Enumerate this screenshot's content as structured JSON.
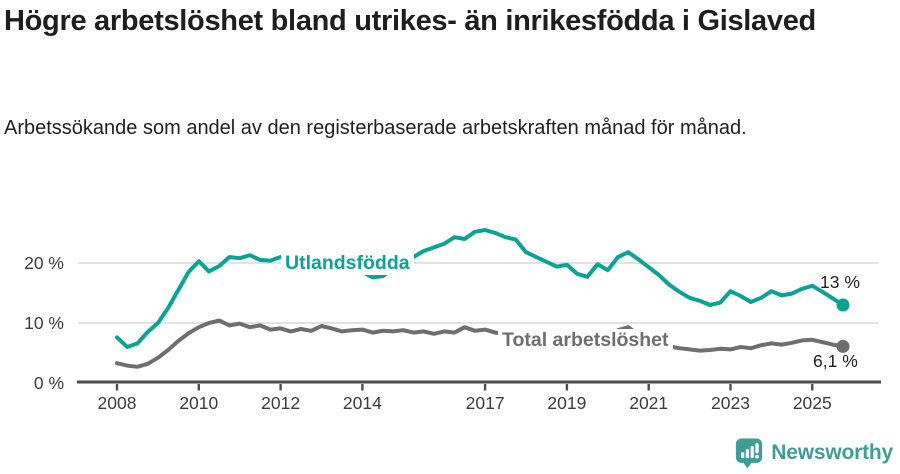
{
  "header": {
    "title": "Högre arbetslöshet bland utrikes- än inrikesfödda i Gislaved",
    "subtitle": "Arbetssökande som andel av den registerbaserade arbetskraften månad för månad."
  },
  "chart_data": {
    "type": "line",
    "title": "Högre arbetslöshet bland utrikes- än inrikesfödda i Gislaved",
    "xlabel": "",
    "ylabel": "",
    "xlim": [
      2007.6,
      2026.3
    ],
    "ylim": [
      0,
      26.5
    ],
    "grid": "horizontal-at-10-and-20",
    "legend_position": "inline-on-lines",
    "xticks": [
      2008,
      2010,
      2012,
      2014,
      2017,
      2019,
      2021,
      2023,
      2025
    ],
    "xtick_labels": [
      "2008",
      "2010",
      "2012",
      "2014",
      "2017",
      "2019",
      "2021",
      "2023",
      "2025"
    ],
    "yticks": [
      0,
      10,
      20
    ],
    "ytick_labels": [
      "0 %",
      "10 %",
      "20 %"
    ],
    "x": [
      2008.0,
      2008.25,
      2008.5,
      2008.75,
      2009.0,
      2009.25,
      2009.5,
      2009.75,
      2010.0,
      2010.25,
      2010.5,
      2010.75,
      2011.0,
      2011.25,
      2011.5,
      2011.75,
      2012.0,
      2012.25,
      2012.5,
      2012.75,
      2013.0,
      2013.25,
      2013.5,
      2013.75,
      2014.0,
      2014.25,
      2014.5,
      2014.75,
      2015.0,
      2015.25,
      2015.5,
      2015.75,
      2016.0,
      2016.25,
      2016.5,
      2016.75,
      2017.0,
      2017.25,
      2017.5,
      2017.75,
      2018.0,
      2018.25,
      2018.5,
      2018.75,
      2019.0,
      2019.25,
      2019.5,
      2019.75,
      2020.0,
      2020.25,
      2020.5,
      2020.75,
      2021.0,
      2021.25,
      2021.5,
      2021.75,
      2022.0,
      2022.25,
      2022.5,
      2022.75,
      2023.0,
      2023.25,
      2023.5,
      2023.75,
      2024.0,
      2024.25,
      2024.5,
      2024.75,
      2025.0,
      2025.25,
      2025.5,
      2025.75
    ],
    "series": [
      {
        "name": "Utlandsfödda",
        "color": "#0aa295",
        "end_label": "13 %",
        "end_value": 13,
        "values": [
          7.6,
          6.0,
          6.6,
          8.5,
          10.0,
          12.5,
          15.5,
          18.5,
          20.3,
          18.6,
          19.5,
          21.0,
          20.8,
          21.3,
          20.5,
          20.4,
          21.0,
          20.6,
          20.3,
          20.5,
          20.8,
          20.5,
          20.2,
          19.5,
          18.5,
          17.6,
          17.8,
          19.0,
          20.0,
          21.0,
          22.0,
          22.6,
          23.2,
          24.3,
          24.0,
          25.2,
          25.5,
          25.0,
          24.3,
          23.9,
          21.8,
          21.0,
          20.2,
          19.4,
          19.7,
          18.2,
          17.7,
          19.8,
          18.8,
          21.0,
          21.8,
          20.6,
          19.3,
          18.0,
          16.4,
          15.2,
          14.2,
          13.7,
          13.0,
          13.4,
          15.3,
          14.5,
          13.5,
          14.2,
          15.3,
          14.6,
          14.9,
          15.7,
          16.2,
          15.2,
          14.1,
          13.0
        ]
      },
      {
        "name": "Total arbetslöshet",
        "color": "#6e6e6e",
        "end_label": "6,1 %",
        "end_value": 6.1,
        "values": [
          3.3,
          2.9,
          2.7,
          3.2,
          4.2,
          5.5,
          7.0,
          8.3,
          9.3,
          10.0,
          10.4,
          9.6,
          9.9,
          9.3,
          9.6,
          8.9,
          9.1,
          8.6,
          9.0,
          8.7,
          9.5,
          9.1,
          8.6,
          8.8,
          8.9,
          8.4,
          8.7,
          8.6,
          8.8,
          8.4,
          8.6,
          8.2,
          8.6,
          8.4,
          9.3,
          8.7,
          8.9,
          8.4,
          8.1,
          8.0,
          7.8,
          7.6,
          7.5,
          7.4,
          7.3,
          7.1,
          7.0,
          7.2,
          7.6,
          8.8,
          9.3,
          8.0,
          7.2,
          6.6,
          6.1,
          5.8,
          5.6,
          5.4,
          5.5,
          5.7,
          5.6,
          6.0,
          5.8,
          6.3,
          6.6,
          6.4,
          6.7,
          7.1,
          7.2,
          6.8,
          6.4,
          6.1
        ]
      }
    ]
  },
  "style": {
    "accent_teal": "#0aa295",
    "line_gray": "#6e6e6e",
    "axis_color": "#4d4d4d",
    "gridline_color": "#d9d9d9",
    "brand_color": "#3f9d97"
  },
  "footer": {
    "brand": "Newsworthy"
  }
}
